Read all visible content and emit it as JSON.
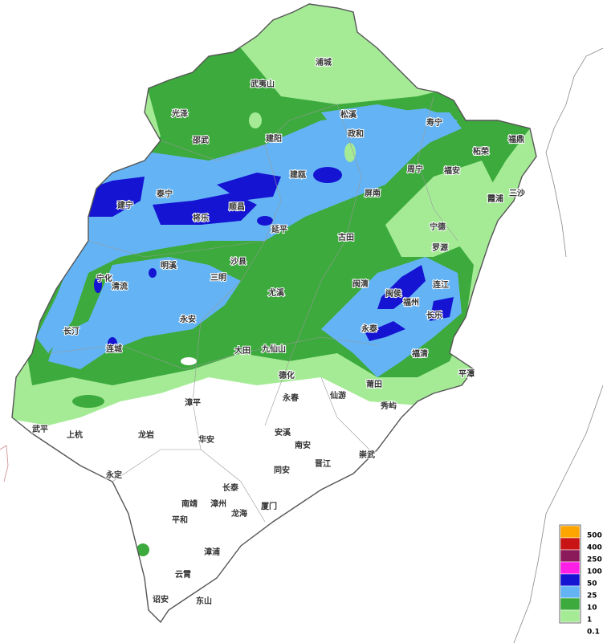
{
  "places": [
    "浦城",
    "武夷山",
    "光泽",
    "松溪",
    "寿宁",
    "政和",
    "邵武",
    "建阳",
    "柘荣",
    "福鼎",
    "周宁",
    "福安",
    "建瓯",
    "泰宁",
    "霞浦",
    "三沙",
    "建宁",
    "顺昌",
    "屏南",
    "将乐",
    "宁德",
    "延平",
    "古田",
    "罗源",
    "明溪",
    "沙县",
    "宁化",
    "清流",
    "三明",
    "闽清",
    "连江",
    "闽侯",
    "福州",
    "长乐",
    "尤溪",
    "永安",
    "长汀",
    "永泰",
    "连城",
    "大田",
    "九仙山",
    "福清",
    "平潭",
    "德化",
    "莆田",
    "永春",
    "仙游",
    "秀屿",
    "漳平",
    "武平",
    "上杭",
    "龙岩",
    "华安",
    "安溪",
    "南安",
    "崇武",
    "晋江",
    "同安",
    "永定",
    "长泰",
    "南靖",
    "漳州",
    "厦门",
    "龙海",
    "平和",
    "漳浦",
    "云霄",
    "诏安",
    "东山"
  ],
  "legend": {
    "colors": [
      "#ffa500",
      "#c81414",
      "#8b1a5a",
      "#ff1ee6",
      "#1414d2",
      "#64b4f5",
      "#3caa3c",
      "#a5eb96"
    ],
    "values": [
      500,
      400,
      250,
      100,
      50,
      25,
      10,
      1,
      0.1
    ]
  }
}
